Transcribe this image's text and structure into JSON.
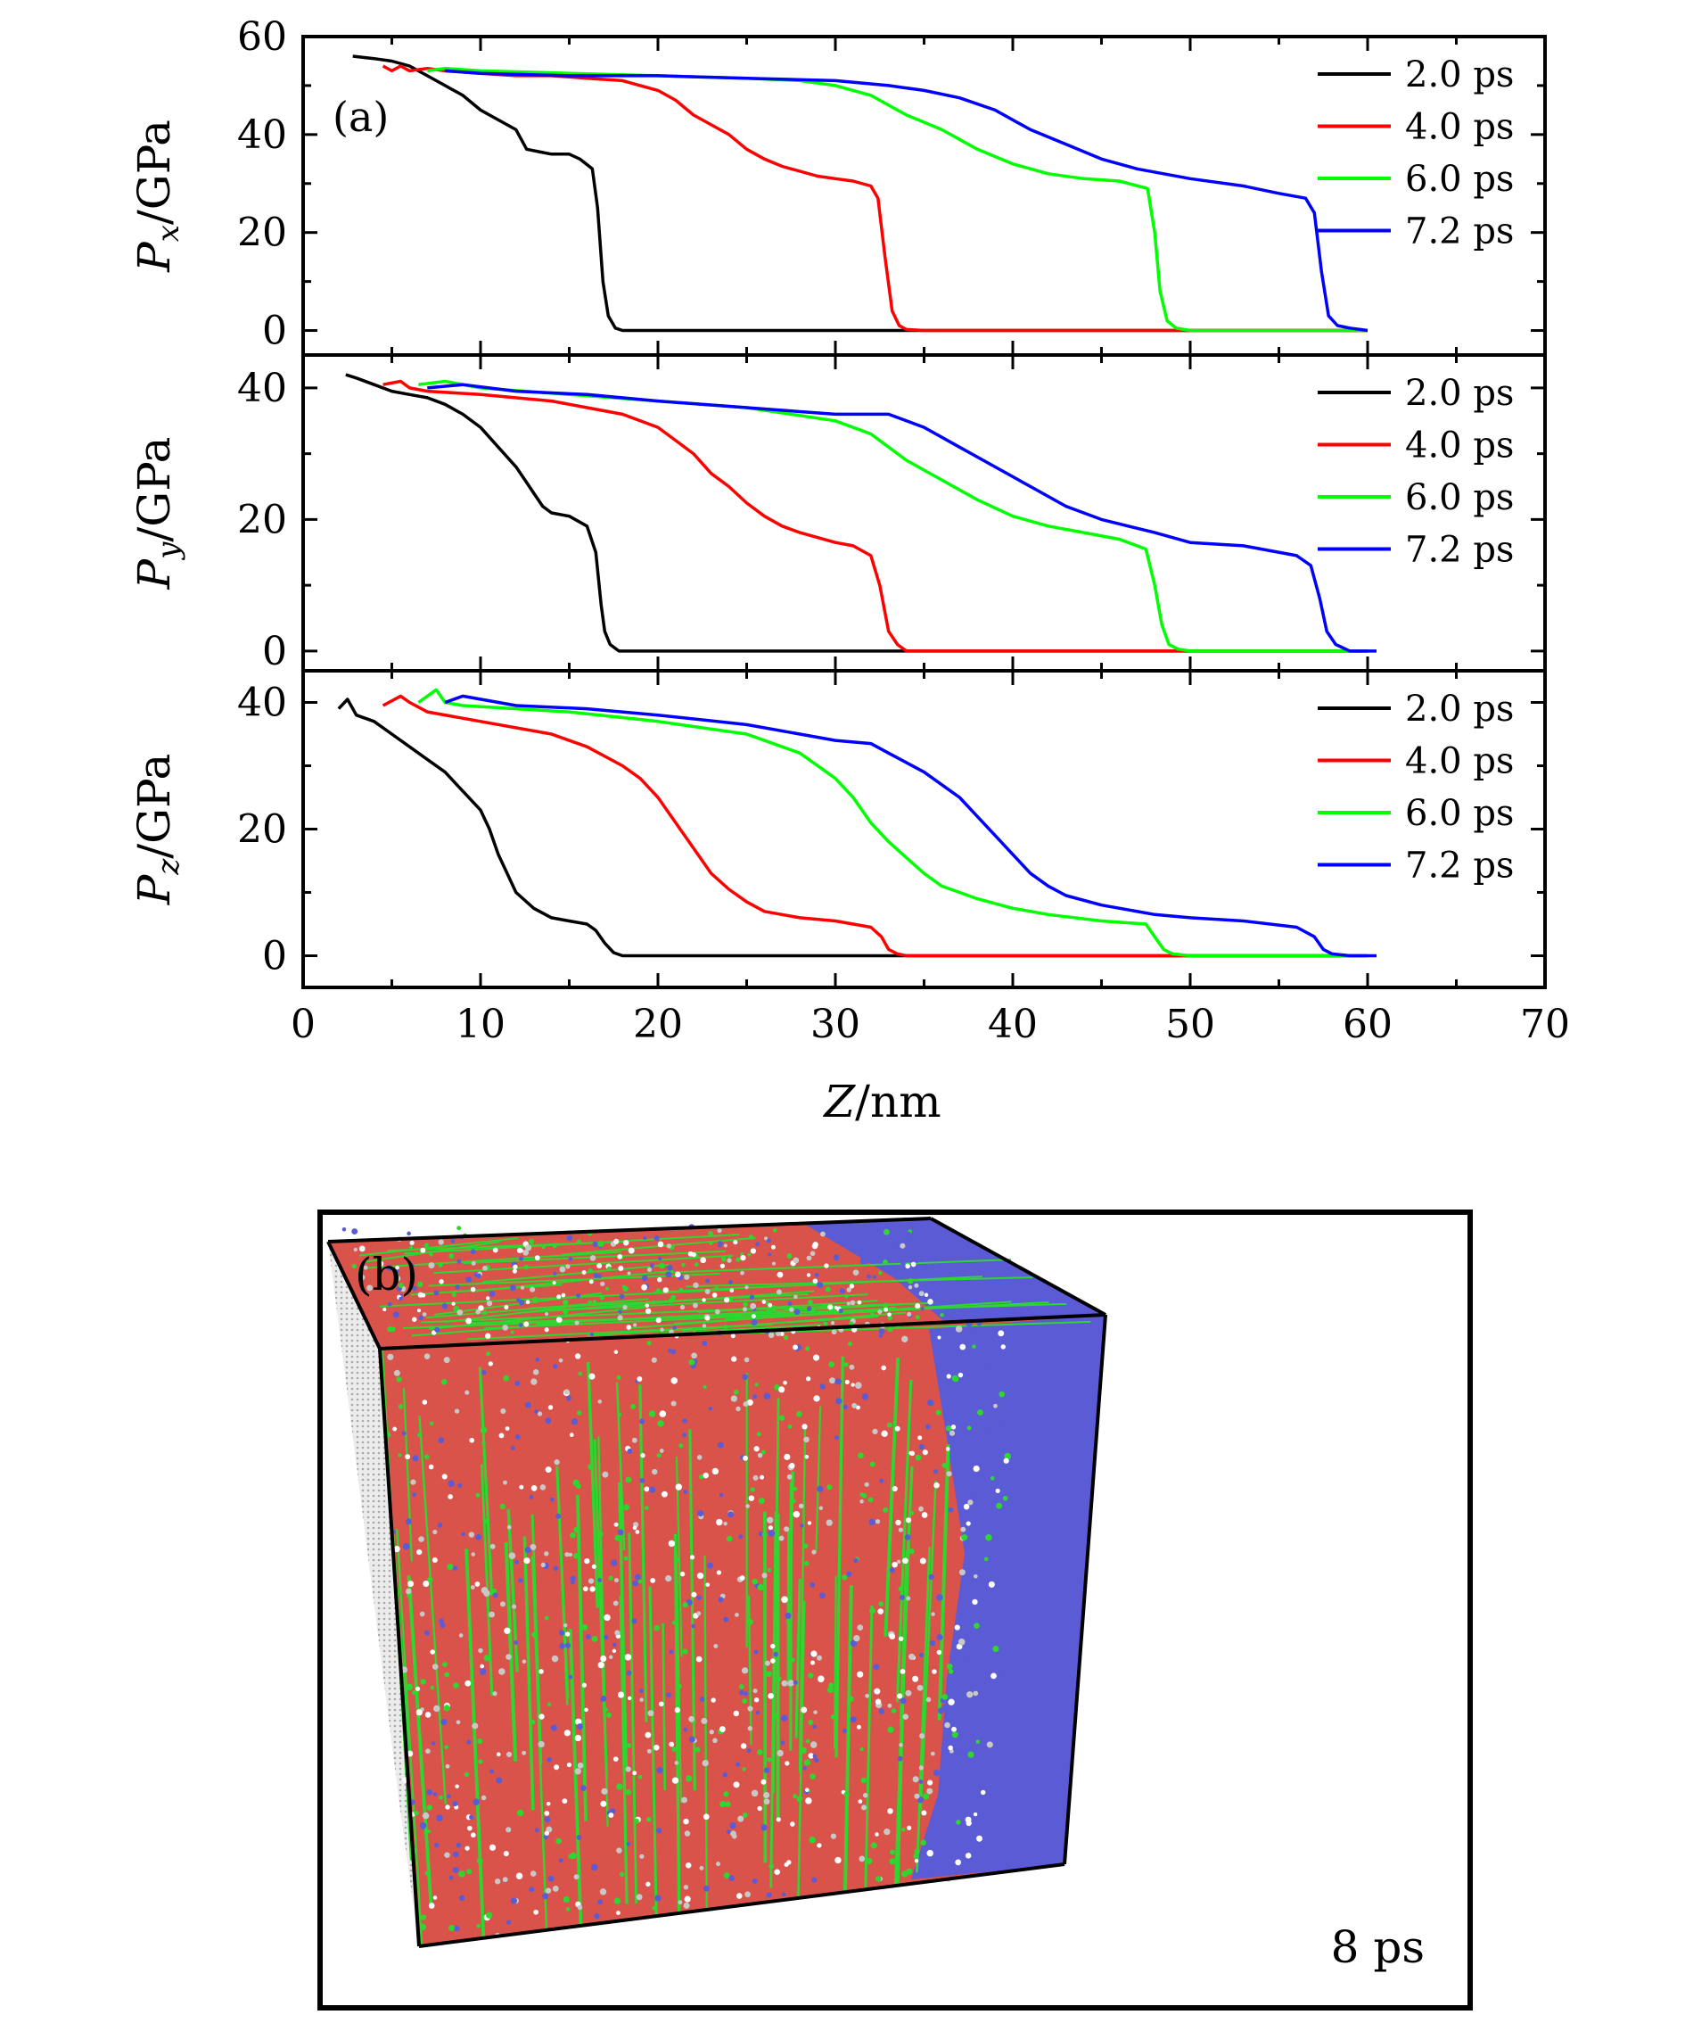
{
  "chart_data": [
    {
      "type": "line",
      "panel_label": "(a)",
      "ylabel": "Px/GPa",
      "ylabel_main": "P",
      "ylabel_sub": "x",
      "ylabel_unit": "/GPa",
      "ylim": [
        -5,
        60
      ],
      "yticks": [
        "0",
        "20",
        "40",
        "60"
      ],
      "xlim": [
        0,
        70
      ],
      "legend_position": "top-right",
      "series": [
        {
          "name": "2.0 ps",
          "color": "#000000",
          "x": [
            2.8,
            4,
            5,
            6,
            7,
            8,
            9,
            10,
            11,
            12,
            12.6,
            13.3,
            14,
            15,
            15.6,
            16.3,
            16.6,
            16.9,
            17.2,
            17.6,
            18,
            19,
            22,
            30,
            40,
            50,
            55,
            60
          ],
          "y": [
            56,
            55.5,
            55,
            54,
            52,
            50,
            48,
            45,
            43,
            41,
            37,
            36.5,
            36,
            36,
            35,
            33,
            25,
            10,
            3,
            0.5,
            0,
            0,
            0,
            0,
            0,
            0,
            0,
            0
          ]
        },
        {
          "name": "4.0 ps",
          "color": "#ff0000",
          "x": [
            4.5,
            5,
            5.5,
            6,
            7,
            8,
            10,
            12,
            14,
            16,
            18,
            19,
            20,
            21,
            22,
            23,
            24,
            25,
            26,
            27,
            28,
            29,
            30,
            31,
            32,
            32.4,
            32.8,
            33.2,
            33.6,
            34,
            35,
            40,
            50,
            60
          ],
          "y": [
            54,
            53,
            54,
            53,
            53.5,
            53,
            52.5,
            52,
            52,
            51.5,
            51,
            50,
            49,
            47,
            44,
            42,
            40,
            37,
            35,
            33.5,
            32.5,
            31.5,
            31,
            30.5,
            29.5,
            27,
            15,
            4,
            1,
            0.2,
            0,
            0,
            0,
            0
          ]
        },
        {
          "name": "6.0 ps",
          "color": "#00ff00",
          "x": [
            7,
            8,
            10,
            15,
            20,
            25,
            28,
            30,
            32,
            34,
            36,
            38,
            40,
            42,
            44,
            46,
            47.6,
            48,
            48.3,
            48.7,
            49.2,
            50,
            55,
            60
          ],
          "y": [
            53,
            53.5,
            53,
            52.5,
            52,
            51.5,
            51,
            50,
            48,
            44,
            41,
            37,
            34,
            32,
            31,
            30.5,
            29,
            20,
            8,
            2,
            0.5,
            0,
            0,
            0
          ]
        },
        {
          "name": "7.2 ps",
          "color": "#0000ff",
          "x": [
            8,
            10,
            15,
            20,
            25,
            30,
            33,
            35,
            37,
            39,
            41,
            43,
            45,
            47,
            50,
            53,
            55,
            56.5,
            57,
            57.4,
            57.8,
            58.3,
            59,
            60
          ],
          "y": [
            53,
            52.5,
            52,
            52,
            51.5,
            51,
            50,
            49,
            47.5,
            45,
            41,
            38,
            35,
            33,
            31,
            29.5,
            28,
            27,
            24,
            12,
            3,
            1,
            0.5,
            0
          ]
        }
      ]
    },
    {
      "type": "line",
      "ylabel": "Py/GPa",
      "ylabel_main": "P",
      "ylabel_sub": "y",
      "ylabel_unit": "/GPa",
      "ylim": [
        -3,
        45
      ],
      "yticks": [
        "0",
        "20",
        "40"
      ],
      "xlim": [
        0,
        70
      ],
      "legend_position": "top-right",
      "series": [
        {
          "name": "2.0 ps",
          "color": "#000000",
          "x": [
            2.4,
            3,
            4,
            5,
            6,
            7,
            8,
            9,
            10,
            11,
            12,
            12.5,
            13,
            13.5,
            14,
            15,
            16,
            16.5,
            16.8,
            17,
            17.3,
            17.8,
            18.5,
            25,
            40,
            50,
            60
          ],
          "y": [
            42,
            41.5,
            40.5,
            39.5,
            39,
            38.5,
            37.5,
            36,
            34,
            31,
            28,
            26,
            24,
            22,
            21,
            20.5,
            19,
            15,
            7,
            3,
            1,
            0,
            0,
            0,
            0,
            0,
            0
          ]
        },
        {
          "name": "4.0 ps",
          "color": "#ff0000",
          "x": [
            4.5,
            5.5,
            6,
            7,
            10,
            14,
            16,
            18,
            20,
            22,
            23,
            24,
            25,
            26,
            27,
            28,
            30,
            31,
            32,
            32.5,
            33,
            33.5,
            34,
            35,
            40,
            50,
            60
          ],
          "y": [
            40.5,
            41,
            40,
            39.5,
            39,
            38,
            37,
            36,
            34,
            30,
            27,
            25,
            22.5,
            20.5,
            19,
            18,
            16.5,
            16,
            14.5,
            10,
            3,
            1,
            0,
            0,
            0,
            0,
            0
          ]
        },
        {
          "name": "6.0 ps",
          "color": "#00ff00",
          "x": [
            6.5,
            8,
            10,
            15,
            20,
            25,
            30,
            32,
            34,
            36,
            38,
            40,
            42,
            44,
            46,
            47.5,
            48,
            48.4,
            48.8,
            49.3,
            50,
            55,
            60
          ],
          "y": [
            40.5,
            41,
            40,
            39,
            38,
            37,
            35,
            33,
            29,
            26,
            23,
            20.5,
            19,
            18,
            17,
            15.5,
            10,
            4,
            1,
            0.3,
            0,
            0,
            0
          ]
        },
        {
          "name": "7.2 ps",
          "color": "#0000ff",
          "x": [
            7,
            9,
            12,
            16,
            20,
            25,
            30,
            33,
            35,
            37,
            39,
            41,
            43,
            45,
            48,
            50,
            53,
            56,
            56.8,
            57.3,
            57.7,
            58.2,
            59,
            60.5
          ],
          "y": [
            40,
            40.5,
            39.5,
            39,
            38,
            37,
            36,
            36,
            34,
            31,
            28,
            25,
            22,
            20,
            18,
            16.5,
            16,
            14.5,
            13,
            8,
            3,
            1,
            0,
            0
          ]
        }
      ]
    },
    {
      "type": "line",
      "ylabel": "Pz/GPa",
      "ylabel_main": "P",
      "ylabel_sub": "z",
      "ylabel_unit": "/GPa",
      "ylim": [
        -5,
        45
      ],
      "yticks": [
        "0",
        "20",
        "40"
      ],
      "xlim": [
        0,
        70
      ],
      "xticks": [
        "0",
        "10",
        "20",
        "30",
        "40",
        "50",
        "60",
        "70"
      ],
      "xlabel": "Z/nm",
      "xlabel_main": "Z",
      "xlabel_unit": "/nm",
      "legend_position": "top-right",
      "series": [
        {
          "name": "2.0 ps",
          "color": "#000000",
          "x": [
            2,
            2.5,
            3,
            4,
            5,
            6,
            7,
            8,
            9,
            10,
            10.5,
            11,
            11.5,
            12,
            13,
            14,
            15,
            16,
            16.5,
            17,
            17.5,
            18,
            25,
            40,
            50,
            60
          ],
          "y": [
            39,
            40.5,
            38,
            37,
            35,
            33,
            31,
            29,
            26,
            23,
            20,
            16,
            13,
            10,
            7.5,
            6,
            5.5,
            5,
            4,
            2,
            0.5,
            0,
            0,
            0,
            0,
            0
          ]
        },
        {
          "name": "4.0 ps",
          "color": "#ff0000",
          "x": [
            4.5,
            5.5,
            6,
            7,
            10,
            14,
            16,
            18,
            19,
            20,
            21,
            22,
            23,
            24,
            25,
            26,
            28,
            30,
            32,
            32.6,
            33,
            33.5,
            34,
            35,
            45,
            60
          ],
          "y": [
            39.5,
            41,
            40,
            38.5,
            37,
            35,
            33,
            30,
            28,
            25,
            21,
            17,
            13,
            10.5,
            8.5,
            7,
            6,
            5.5,
            4.5,
            3,
            1,
            0.3,
            0,
            0,
            0,
            0
          ]
        },
        {
          "name": "6.0 ps",
          "color": "#00ff00",
          "x": [
            6.5,
            7.5,
            8,
            9,
            12,
            15,
            20,
            25,
            28,
            30,
            31,
            32,
            33,
            34,
            35,
            36,
            38,
            40,
            42,
            45,
            47.5,
            48,
            48.5,
            49,
            50,
            55,
            60
          ],
          "y": [
            40,
            42,
            40,
            39.5,
            39,
            38.5,
            37,
            35,
            32,
            28,
            25,
            21,
            18,
            15.5,
            13,
            11,
            9,
            7.5,
            6.5,
            5.5,
            5,
            3,
            1,
            0.3,
            0,
            0,
            0
          ]
        },
        {
          "name": "7.2 ps",
          "color": "#0000ff",
          "x": [
            8,
            9,
            12,
            16,
            20,
            25,
            28,
            30,
            32,
            33,
            35,
            37,
            38,
            39,
            40,
            41,
            42,
            43,
            45,
            48,
            50,
            53,
            56,
            57,
            57.5,
            58,
            59,
            60.5
          ],
          "y": [
            40,
            41,
            39.5,
            39,
            38,
            36.5,
            35,
            34,
            33.5,
            32,
            29,
            25,
            22,
            19,
            16,
            13,
            11,
            9.5,
            8,
            6.5,
            6,
            5.5,
            4.5,
            3,
            1,
            0.3,
            0,
            0
          ]
        }
      ]
    }
  ],
  "panel_b": {
    "label": "(b)",
    "time_label": "8 ps",
    "colors": {
      "fcc_region": "#d9534b",
      "defect_lines": "#2fd62f",
      "hcp_region": "#5b5bd6",
      "other_atoms": "#c8c8c8"
    }
  }
}
